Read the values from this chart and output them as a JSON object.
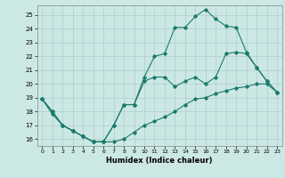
{
  "xlabel": "Humidex (Indice chaleur)",
  "bg_color": "#cce8e4",
  "grid_color": "#b0cccc",
  "line_color": "#1a7a6e",
  "xlim": [
    -0.5,
    23.5
  ],
  "ylim": [
    15.5,
    25.7
  ],
  "xticks": [
    0,
    1,
    2,
    3,
    4,
    5,
    6,
    7,
    8,
    9,
    10,
    11,
    12,
    13,
    14,
    15,
    16,
    17,
    18,
    19,
    20,
    21,
    22,
    23
  ],
  "yticks": [
    16,
    17,
    18,
    19,
    20,
    21,
    22,
    23,
    24,
    25
  ],
  "line1_x": [
    0,
    1,
    2,
    3,
    4,
    5,
    6,
    7,
    8,
    9,
    10,
    11,
    12,
    13,
    14,
    15,
    16,
    17,
    18,
    19,
    20,
    21,
    22,
    23
  ],
  "line1_y": [
    18.9,
    18.0,
    17.0,
    16.6,
    16.2,
    15.8,
    15.8,
    17.0,
    18.5,
    18.5,
    20.5,
    22.0,
    22.2,
    24.1,
    24.1,
    24.9,
    25.4,
    24.7,
    24.2,
    24.1,
    22.3,
    21.2,
    20.2,
    19.4
  ],
  "line2_x": [
    0,
    1,
    2,
    3,
    4,
    5,
    6,
    7,
    8,
    9,
    10,
    11,
    12,
    13,
    14,
    15,
    16,
    17,
    18,
    19,
    20,
    21,
    22,
    23
  ],
  "line2_y": [
    18.9,
    18.0,
    17.0,
    16.6,
    16.2,
    15.8,
    15.8,
    17.0,
    18.5,
    18.5,
    20.2,
    20.5,
    20.5,
    19.8,
    20.2,
    20.5,
    20.0,
    20.5,
    22.2,
    22.3,
    22.2,
    21.2,
    20.2,
    19.4
  ],
  "line3_x": [
    0,
    1,
    2,
    3,
    4,
    5,
    6,
    7,
    8,
    9,
    10,
    11,
    12,
    13,
    14,
    15,
    16,
    17,
    18,
    19,
    20,
    21,
    22,
    23
  ],
  "line3_y": [
    18.9,
    17.8,
    17.0,
    16.6,
    16.2,
    15.8,
    15.8,
    15.8,
    16.0,
    16.5,
    17.0,
    17.3,
    17.6,
    18.0,
    18.5,
    18.9,
    19.0,
    19.3,
    19.5,
    19.7,
    19.8,
    20.0,
    20.0,
    19.4
  ]
}
